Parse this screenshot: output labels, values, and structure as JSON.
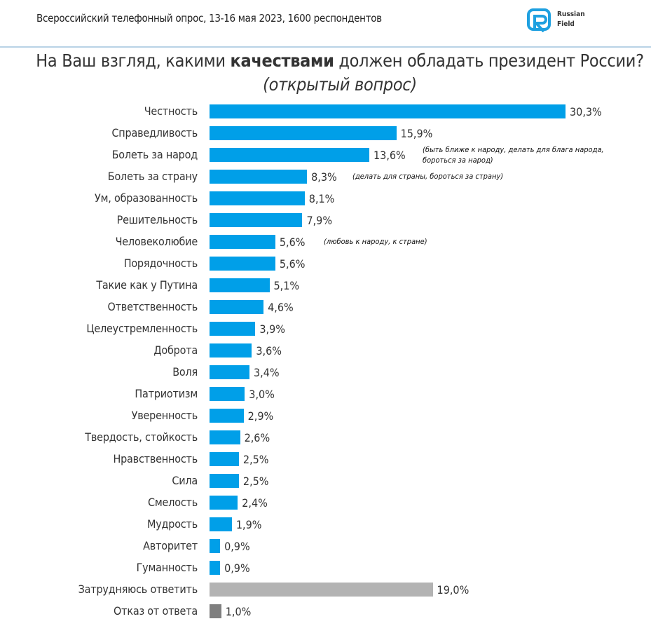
{
  "header": {
    "subtitle": "Всероссийский телефонный опрос, 13-16 мая 2023, 1600 респондентов",
    "logo_line1": "Russian",
    "logo_line2": "Field"
  },
  "chart_data": {
    "type": "bar",
    "orientation": "horizontal",
    "title_parts": {
      "a": "На Ваш взгляд, какими ",
      "b": "качествами",
      "c": " должен обладать президент России? ",
      "d": "(открытый вопрос)"
    },
    "categories": [
      "Честность",
      "Справедливость",
      "Болеть за народ",
      "Болеть за страну",
      "Ум, образованность",
      "Решительность",
      "Человеколюбие",
      "Порядочность",
      "Такие как у Путина",
      "Ответственность",
      "Целеустремленность",
      "Доброта",
      "Воля",
      "Патриотизм",
      "Уверенность",
      "Твердость, стойкость",
      "Нравственность",
      "Сила",
      "Смелость",
      "Мудрость",
      "Авторитет",
      "Гуманность",
      "Затрудняюсь ответить",
      "Отказ от ответа"
    ],
    "values": [
      30.3,
      15.9,
      13.6,
      8.3,
      8.1,
      7.9,
      5.6,
      5.6,
      5.1,
      4.6,
      3.9,
      3.6,
      3.4,
      3.0,
      2.9,
      2.6,
      2.5,
      2.5,
      2.4,
      1.9,
      0.9,
      0.9,
      19.0,
      1.0
    ],
    "value_labels": [
      "30,3%",
      "15,9%",
      "13,6%",
      "8,3%",
      "8,1%",
      "7,9%",
      "5,6%",
      "5,6%",
      "5,1%",
      "4,6%",
      "3,9%",
      "3,6%",
      "3,4%",
      "3,0%",
      "2,9%",
      "2,6%",
      "2,5%",
      "2,5%",
      "2,4%",
      "1,9%",
      "0,9%",
      "0,9%",
      "19,0%",
      "1,0%"
    ],
    "annotations": {
      "2": "(быть ближе к народу, делать для блага народа, бороться за народ)",
      "3": "(делать для страны, бороться за страну)",
      "6": "(любовь к народу, к стране)"
    },
    "colors": {
      "main": "#009fe8",
      "dont_know": "#b3b3b3",
      "refuse": "#7f7f7f"
    },
    "unit": "%"
  }
}
